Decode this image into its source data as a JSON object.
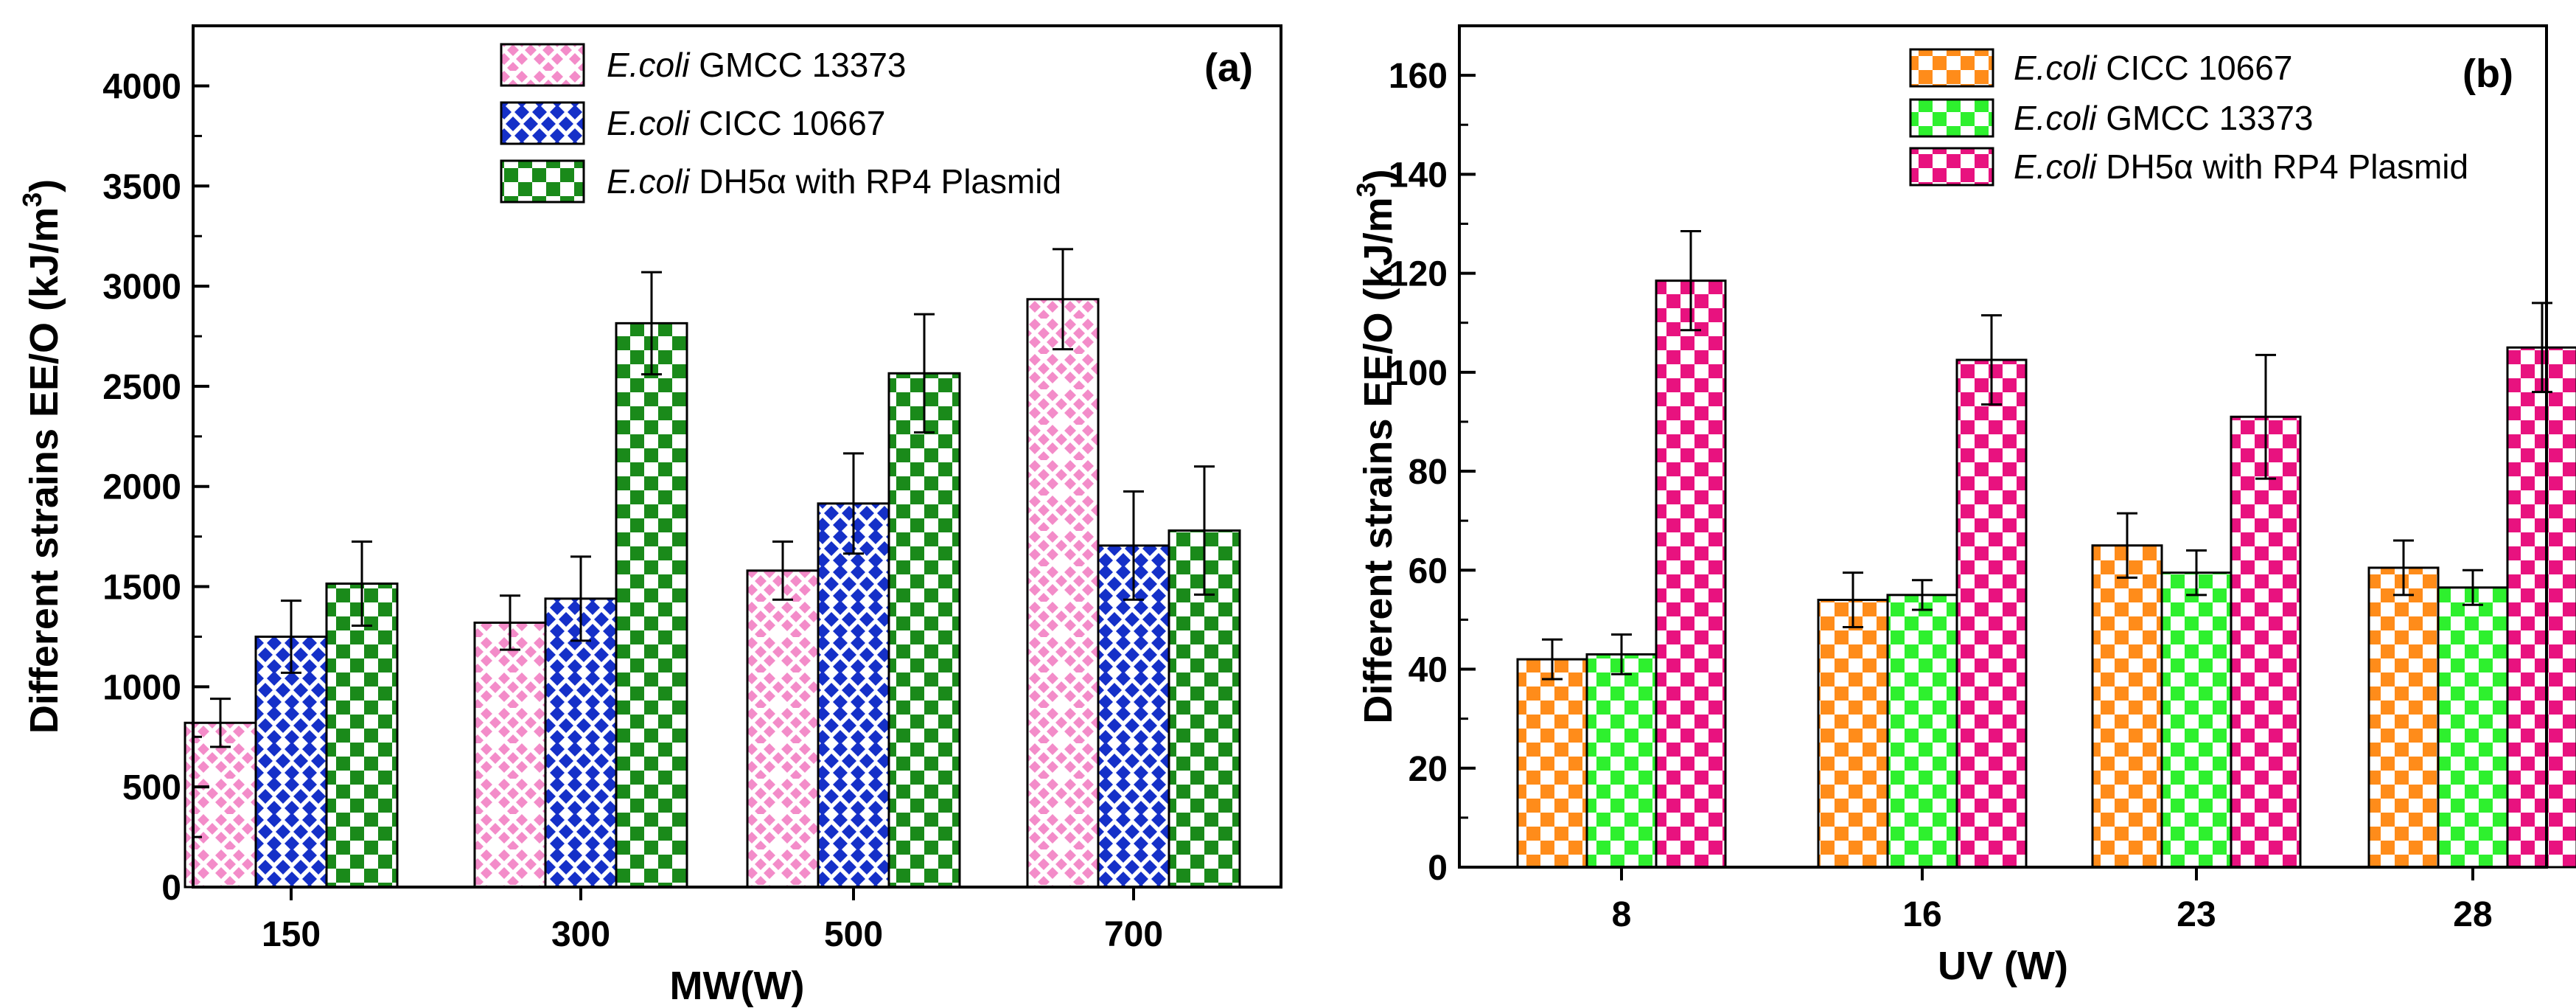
{
  "chart_data": [
    {
      "panel": "a",
      "type": "bar",
      "panel_label": "(a)",
      "xlabel": "MW(W)",
      "ylabel": "Different strains EE/O (kJ/m",
      "ylabel_sup": "3",
      "ylabel_end": ")",
      "ylim": [
        0,
        4300
      ],
      "yticks": [
        0,
        500,
        1000,
        1500,
        2000,
        2500,
        3000,
        3500,
        4000
      ],
      "categories": [
        "150",
        "300",
        "500",
        "700"
      ],
      "series": [
        {
          "name_italic": "E.coli",
          "name_rest": " GMCC 13373",
          "color": "#f38cc9",
          "pattern": "diamond",
          "values": [
            820,
            1320,
            1580,
            2935
          ],
          "errors": [
            120,
            135,
            145,
            250
          ]
        },
        {
          "name_italic": "E.coli",
          "name_rest": " CICC 10667",
          "color": "#1530c8",
          "pattern": "diamond",
          "values": [
            1250,
            1440,
            1915,
            1705
          ],
          "errors": [
            180,
            210,
            250,
            270
          ]
        },
        {
          "name_italic": "E.coli",
          "name_rest": " DH5α with RP4 Plasmid",
          "color": "#1a8a1a",
          "pattern": "checker",
          "values": [
            1515,
            2815,
            2565,
            1780
          ],
          "errors": [
            210,
            255,
            295,
            320
          ]
        }
      ]
    },
    {
      "panel": "b",
      "type": "bar",
      "panel_label": "(b)",
      "xlabel": "UV (W)",
      "ylabel": "Different strains EE/O (kJ/m",
      "ylabel_sup": "3",
      "ylabel_end": ")",
      "ylim": [
        0,
        170
      ],
      "yticks": [
        0,
        20,
        40,
        60,
        80,
        100,
        120,
        140,
        160
      ],
      "categories": [
        "8",
        "16",
        "23",
        "28"
      ],
      "series": [
        {
          "name_italic": "E.coli",
          "name_rest": " CICC 10667",
          "color": "#ff8c1a",
          "pattern": "checker",
          "values": [
            42,
            54,
            65,
            60.5
          ],
          "errors": [
            4,
            5.5,
            6.5,
            5.5
          ]
        },
        {
          "name_italic": "E.coli",
          "name_rest": " GMCC 13373",
          "color": "#2ef02e",
          "pattern": "checker",
          "values": [
            43,
            55,
            59.5,
            56.5
          ],
          "errors": [
            4,
            3,
            4.5,
            3.5
          ]
        },
        {
          "name_italic": "E.coli",
          "name_rest": " DH5α with RP4 Plasmid",
          "color": "#e8127f",
          "pattern": "checker",
          "values": [
            118.5,
            102.5,
            91,
            105
          ],
          "errors": [
            10,
            9,
            12.5,
            9
          ]
        }
      ]
    }
  ]
}
